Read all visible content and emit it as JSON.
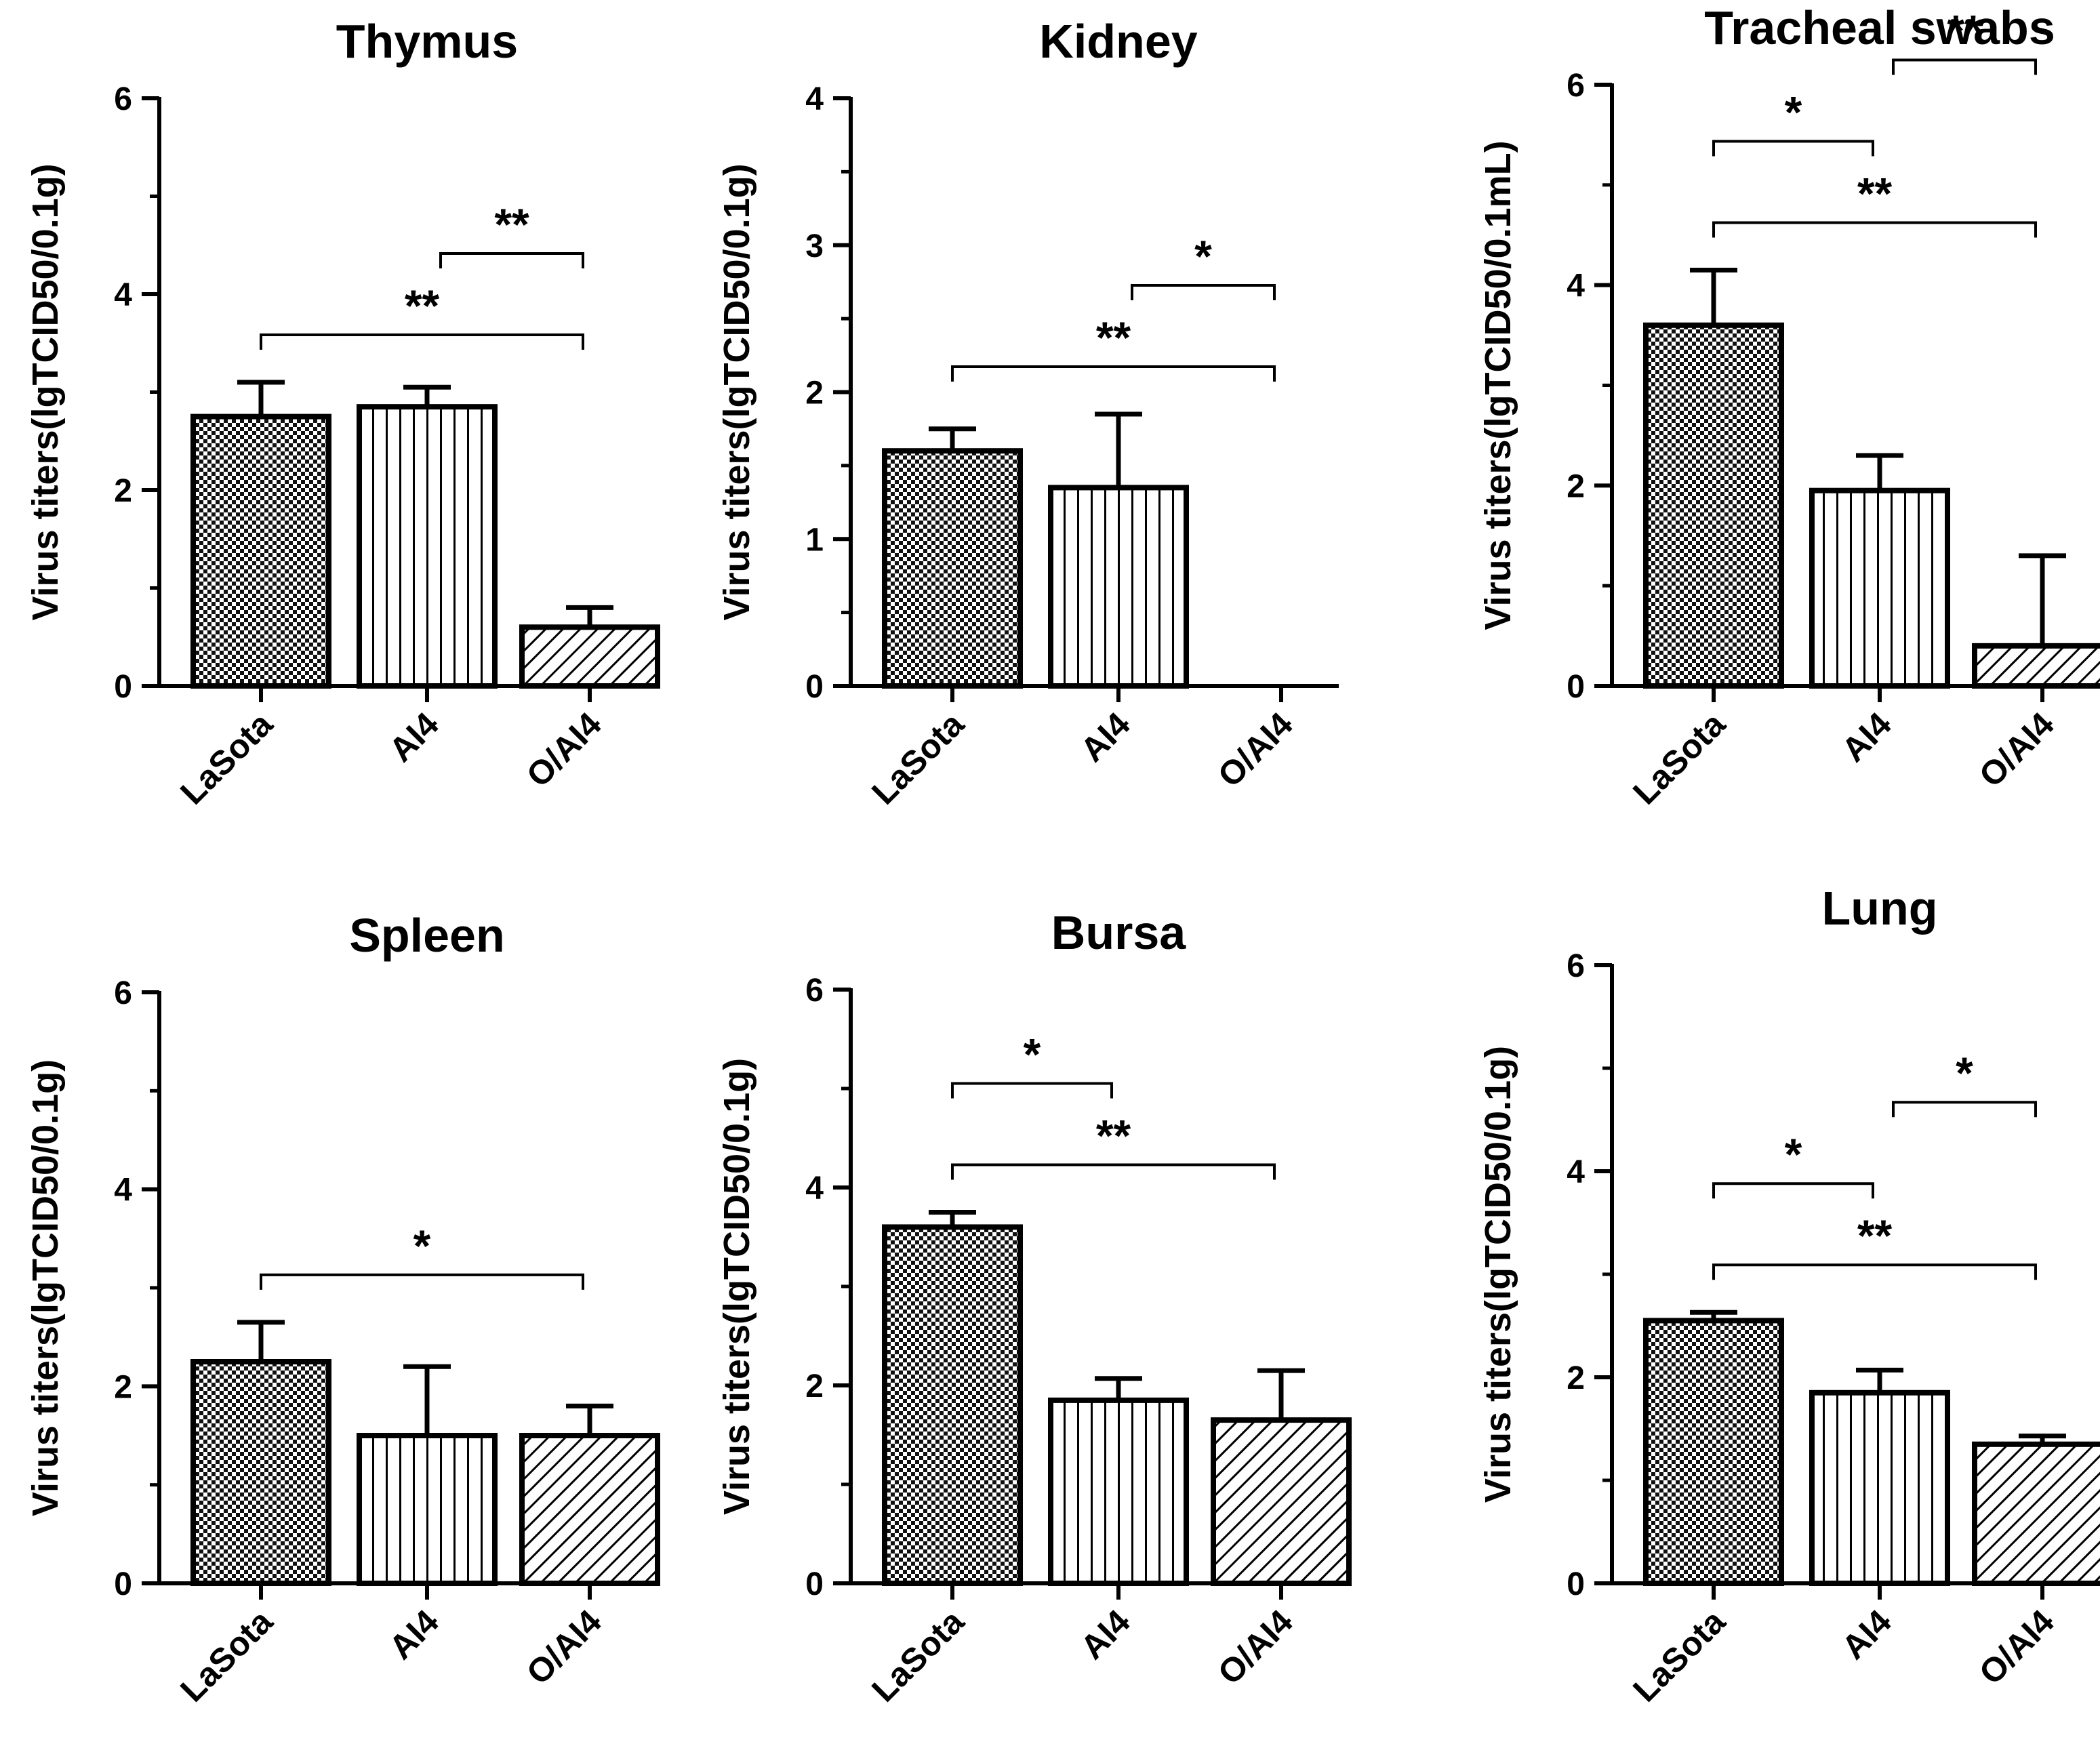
{
  "figure": {
    "categories": [
      "LaSota",
      "AI4",
      "O/AI4"
    ],
    "patterns": [
      "checker",
      "vertical",
      "diagonal"
    ]
  },
  "chart_data": [
    {
      "type": "bar",
      "title": "Thymus",
      "xlabel": "",
      "ylabel": "Virus titers(lgTCID50/0.1g)",
      "categories": [
        "LaSota",
        "AI4",
        "O/AI4"
      ],
      "values": [
        2.75,
        2.85,
        0.6
      ],
      "errors": [
        0.35,
        0.2,
        0.2
      ],
      "ylim": [
        0,
        6
      ],
      "yticks": [
        "0",
        "2",
        "4",
        "6"
      ],
      "significance": [
        {
          "from": 0,
          "to": 2,
          "label": "**"
        },
        {
          "from": 1,
          "to": 2,
          "label": "**"
        }
      ]
    },
    {
      "type": "bar",
      "title": "Kidney",
      "xlabel": "",
      "ylabel": "Virus titers(lgTCID50/0.1g)",
      "categories": [
        "LaSota",
        "AI4",
        "O/AI4"
      ],
      "values": [
        1.6,
        1.35,
        0
      ],
      "errors": [
        0.15,
        0.5,
        0
      ],
      "ylim": [
        0,
        4
      ],
      "yticks": [
        "0",
        "1",
        "2",
        "3",
        "4"
      ],
      "significance": [
        {
          "from": 0,
          "to": 2,
          "label": "**"
        },
        {
          "from": 1,
          "to": 2,
          "label": "*"
        }
      ]
    },
    {
      "type": "bar",
      "title": "Tracheal swabs",
      "xlabel": "",
      "ylabel": "Virus titers(lgTCID50/0.1mL)",
      "categories": [
        "LaSota",
        "AI4",
        "O/AI4"
      ],
      "values": [
        3.6,
        1.95,
        0.4
      ],
      "errors": [
        0.55,
        0.35,
        0.9
      ],
      "ylim": [
        0,
        6
      ],
      "yticks": [
        "0",
        "2",
        "4",
        "6"
      ],
      "significance": [
        {
          "from": 0,
          "to": 2,
          "label": "**"
        },
        {
          "from": 0,
          "to": 1,
          "label": "*"
        },
        {
          "from": 1,
          "to": 2,
          "label": "**"
        }
      ]
    },
    {
      "type": "bar",
      "title": "Spleen",
      "xlabel": "",
      "ylabel": "Virus titers(lgTCID50/0.1g)",
      "categories": [
        "LaSota",
        "AI4",
        "O/AI4"
      ],
      "values": [
        2.25,
        1.5,
        1.5
      ],
      "errors": [
        0.4,
        0.7,
        0.3
      ],
      "ylim": [
        0,
        6
      ],
      "yticks": [
        "0",
        "2",
        "4",
        "6"
      ],
      "significance": [
        {
          "from": 0,
          "to": 2,
          "label": "*"
        }
      ]
    },
    {
      "type": "bar",
      "title": "Bursa",
      "xlabel": "",
      "ylabel": "Virus titers(lgTCID50/0.1g)",
      "categories": [
        "LaSota",
        "AI4",
        "O/AI4"
      ],
      "values": [
        3.6,
        1.85,
        1.65
      ],
      "errors": [
        0.15,
        0.22,
        0.5
      ],
      "ylim": [
        0,
        6
      ],
      "yticks": [
        "0",
        "2",
        "4",
        "6"
      ],
      "significance": [
        {
          "from": 0,
          "to": 2,
          "label": "**"
        },
        {
          "from": 0,
          "to": 1,
          "label": "*"
        }
      ]
    },
    {
      "type": "bar",
      "title": "Lung",
      "xlabel": "",
      "ylabel": "Virus titers(lgTCID50/0.1g)",
      "categories": [
        "LaSota",
        "AI4",
        "O/AI4"
      ],
      "values": [
        2.55,
        1.85,
        1.35
      ],
      "errors": [
        0.08,
        0.22,
        0.08
      ],
      "ylim": [
        0,
        6
      ],
      "yticks": [
        "0",
        "2",
        "4",
        "6"
      ],
      "significance": [
        {
          "from": 0,
          "to": 2,
          "label": "**"
        },
        {
          "from": 0,
          "to": 1,
          "label": "*"
        },
        {
          "from": 1,
          "to": 2,
          "label": "*"
        }
      ]
    }
  ]
}
